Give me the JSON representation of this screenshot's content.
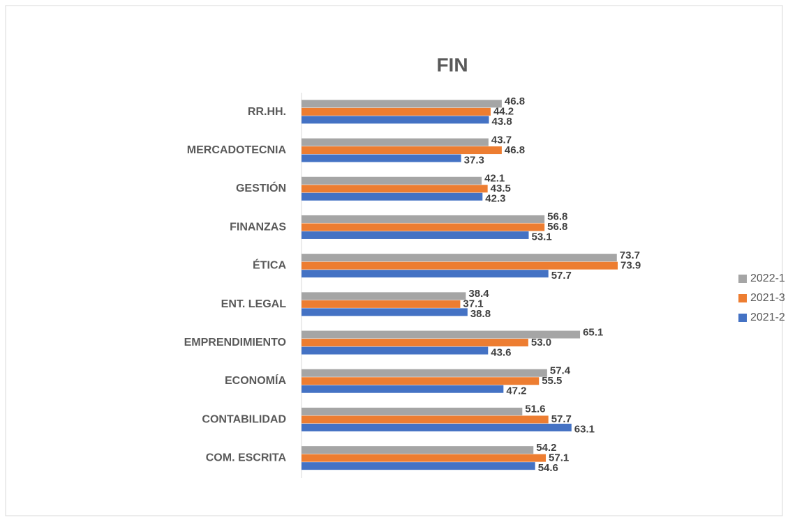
{
  "chart_data": {
    "type": "hbar",
    "title": "FIN",
    "categories": [
      "RR.HH.",
      "MERCADOTECNIA",
      "GESTIÓN",
      "FINANZAS",
      "ÉTICA",
      "ENT. LEGAL",
      "EMPRENDIMIENTO",
      "ECONOMÍA",
      "CONTABILIDAD",
      "COM. ESCRITA"
    ],
    "series": [
      {
        "name": "2022-1",
        "color": "#a5a5a5",
        "values": [
          46.8,
          43.7,
          42.1,
          56.8,
          73.7,
          38.4,
          65.1,
          57.4,
          51.6,
          54.2
        ],
        "value_labels": [
          "46.8",
          "43.7",
          "42.1",
          "56.8",
          "73.7",
          "38.4",
          "65.1",
          "57.4",
          "51.6",
          "54.2"
        ]
      },
      {
        "name": "2021-3",
        "color": "#ed7d31",
        "values": [
          44.2,
          46.8,
          43.5,
          56.8,
          73.9,
          37.1,
          53,
          55.5,
          57.7,
          57.1
        ],
        "value_labels": [
          "44.2",
          "46.8",
          "43.5",
          "56.8",
          "73.9",
          "37.1",
          "53.0",
          "55.5",
          "57.7",
          "57.1"
        ]
      },
      {
        "name": "2021-2",
        "color": "#4472c4",
        "values": [
          43.8,
          37.3,
          42.3,
          53.1,
          57.7,
          38.8,
          43.6,
          47.2,
          63.1,
          54.6
        ],
        "value_labels": [
          "43.8",
          "37.3",
          "42.3",
          "53.1",
          "57.7",
          "38.8",
          "43.6",
          "47.2",
          "63.1",
          "54.6"
        ]
      }
    ],
    "xlim": [
      0,
      100
    ],
    "legend": "right"
  }
}
